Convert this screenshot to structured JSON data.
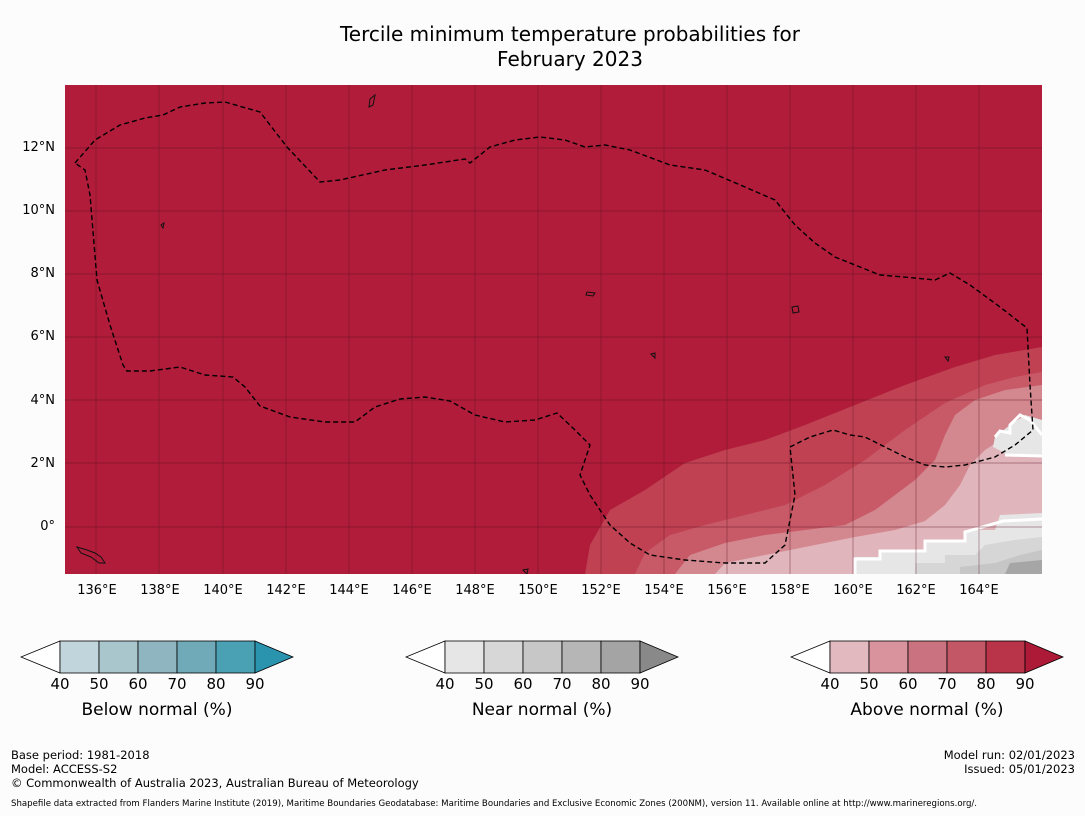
{
  "title_line1": "Tercile minimum temperature probabilities for",
  "title_line2": "February 2023",
  "map": {
    "lat_labels": [
      "12°N",
      "10°N",
      "8°N",
      "6°N",
      "4°N",
      "2°N",
      "0°"
    ],
    "lon_labels": [
      "136°E",
      "138°E",
      "140°E",
      "142°E",
      "144°E",
      "146°E",
      "148°E",
      "150°E",
      "152°E",
      "154°E",
      "156°E",
      "158°E",
      "160°E",
      "162°E",
      "164°E"
    ],
    "colors": {
      "above_90": "#b01c3a",
      "above_80": "#bf4152",
      "above_70": "#c85a67",
      "above_60": "#d3878f",
      "above_50": "#e0b5bb",
      "near_40": "#e6e6e6",
      "near_50": "#d6d6d6",
      "near_60": "#c6c6c6",
      "near_70": "#b3b3b3",
      "near_80": "#a6a6a6"
    }
  },
  "legends": [
    {
      "caption": "Below normal (%)",
      "ticks": [
        "40",
        "50",
        "60",
        "70",
        "80",
        "90"
      ],
      "colors": [
        "#ffffff",
        "#c0d6dc",
        "#a9c6cd",
        "#8fb5c1",
        "#70a9b7",
        "#4aa1b4",
        "#2a93ad"
      ]
    },
    {
      "caption": "Near normal (%)",
      "ticks": [
        "40",
        "50",
        "60",
        "70",
        "80",
        "90"
      ],
      "colors": [
        "#ffffff",
        "#e6e6e6",
        "#d7d7d7",
        "#c7c7c7",
        "#b6b6b6",
        "#a4a4a4",
        "#898989"
      ]
    },
    {
      "caption": "Above normal (%)",
      "ticks": [
        "40",
        "50",
        "60",
        "70",
        "80",
        "90"
      ],
      "colors": [
        "#ffffff",
        "#e3b9c0",
        "#d8939c",
        "#ca7280",
        "#c35766",
        "#b93349",
        "#ad1a38"
      ]
    }
  ],
  "footer": {
    "base_period": "Base period: 1981-2018",
    "model": "Model: ACCESS-S2",
    "copyright": "© Commonwealth of Australia 2023, Australian Bureau of Meteorology",
    "model_run": "Model run: 02/01/2023",
    "issued": "Issued: 05/01/2023",
    "shapefile": "Shapefile data extracted from Flanders Marine Institute (2019), Maritime Boundaries Geodatabase: Maritime Boundaries and Exclusive Economic Zones (200NM), version 11. Available online at http://www.marineregions.org/."
  }
}
